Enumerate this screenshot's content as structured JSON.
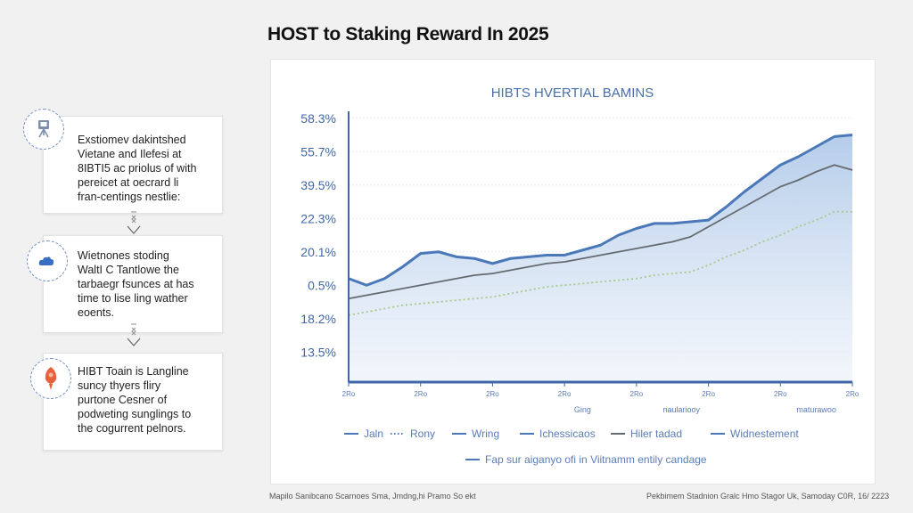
{
  "page": {
    "title": "HOST to Staking Reward In 2025",
    "footer_left": "Mapilo Sanibcano Scarnoes Sma, Jmdng,hi Pramo So ekt",
    "footer_right": "Pekbimem Stadnion Gralc Hmo Stagor Uk, Samoday C0R, 16/ 2223"
  },
  "steps": [
    {
      "icon": "tripod-icon",
      "text_lines": [
        "Exstiomev dakintshed",
        "Vietane and Ilefesi at",
        "8IBTI5 ac priolus of with",
        "pereicet at oecrard li",
        "fran-centings nestlie:"
      ]
    },
    {
      "icon": "cloud-icon",
      "text_lines": [
        "Wietnones stoding",
        "WaltI C Tantlowe the",
        "tarbaegr fsunces at has",
        "time to lise ling wather",
        "eoents."
      ]
    },
    {
      "icon": "rocket-icon",
      "text_lines": [
        "HIBT Toain is Langline",
        "suncy thyers fliry",
        "purtone Cesner of",
        "podweting sunglings to",
        "the cogurrent pelnors."
      ]
    }
  ],
  "colors": {
    "blue_line": "#4a78b8",
    "blue_fill": "#c7d8ee",
    "gray_line": "#666b70",
    "green_dotted": "#a9c98a",
    "axis": "#3f67a8",
    "tick_label": "#3f67a8"
  },
  "chart_data": {
    "type": "area",
    "title": "HIBTS HVERTIAL BAMINS",
    "xlabel": "",
    "ylabel": "",
    "y_scale_note": "values expressed in tick-index units (0 = bottom tick 13.5%, 7 = top tick 58.3%)",
    "yticks": [
      "58.3%",
      "55.7%",
      "39.5%",
      "22.3%",
      "20.1%",
      "0.5%",
      "18.2%",
      "13.5%"
    ],
    "ylim": [
      -0.9,
      7.1
    ],
    "xlim": [
      0,
      28
    ],
    "xticks": [
      {
        "x": 0,
        "label": "2Ro"
      },
      {
        "x": 4,
        "label": "2Ro"
      },
      {
        "x": 8,
        "label": "2Ro"
      },
      {
        "x": 12,
        "label": "2Ro"
      },
      {
        "x": 16,
        "label": "2Ro"
      },
      {
        "x": 20,
        "label": "2Ro"
      },
      {
        "x": 24,
        "label": "2Ro"
      },
      {
        "x": 28,
        "label": "2Ro"
      }
    ],
    "x_annotations": [
      {
        "x": 13,
        "label": "Ging"
      },
      {
        "x": 18.5,
        "label": "naulariooy"
      },
      {
        "x": 26,
        "label": "maturawoo"
      }
    ],
    "grid": true,
    "series": [
      {
        "name": "Jaln",
        "style": "solid-thick-filled",
        "values": [
          2.2,
          2.0,
          2.2,
          2.55,
          2.95,
          3.0,
          2.85,
          2.8,
          2.65,
          2.8,
          2.85,
          2.9,
          2.9,
          3.05,
          3.2,
          3.5,
          3.7,
          3.85,
          3.85,
          3.9,
          3.95,
          4.35,
          4.8,
          5.2,
          5.6,
          5.85,
          6.15,
          6.45,
          6.5
        ]
      },
      {
        "name": "Hiler tadad",
        "style": "solid-gray",
        "values": [
          1.6,
          1.7,
          1.8,
          1.9,
          2.0,
          2.1,
          2.2,
          2.3,
          2.35,
          2.45,
          2.55,
          2.65,
          2.7,
          2.8,
          2.9,
          3.0,
          3.1,
          3.2,
          3.3,
          3.45,
          3.75,
          4.05,
          4.35,
          4.65,
          4.95,
          5.15,
          5.4,
          5.6,
          5.45
        ]
      },
      {
        "name": "Rony",
        "style": "dotted-green",
        "values": [
          1.1,
          1.2,
          1.3,
          1.4,
          1.45,
          1.5,
          1.55,
          1.6,
          1.65,
          1.75,
          1.85,
          1.95,
          2.0,
          2.05,
          2.1,
          2.15,
          2.2,
          2.3,
          2.35,
          2.4,
          2.6,
          2.85,
          3.05,
          3.3,
          3.5,
          3.75,
          3.95,
          4.2,
          4.2
        ]
      }
    ],
    "legend": {
      "placement": "bottom",
      "entries": [
        {
          "label": "Jaln",
          "style": "solid",
          "color": "#4a78b8"
        },
        {
          "label": "Rony",
          "style": "dotted",
          "color": "#4a78b8"
        },
        {
          "label": "Wring",
          "style": "solid",
          "color": "#4a78b8"
        },
        {
          "label": "Ichessicaos",
          "style": "solid",
          "color": "#4a78b8"
        },
        {
          "label": "Hiler tadad",
          "style": "solid",
          "color": "#666b70"
        },
        {
          "label": "Widnestement",
          "style": "solid",
          "color": "#4a78b8"
        },
        {
          "label": "Fap sur aiganyo ofi in Viitnamm entily candage",
          "style": "solid",
          "color": "#4a78b8"
        }
      ]
    }
  }
}
